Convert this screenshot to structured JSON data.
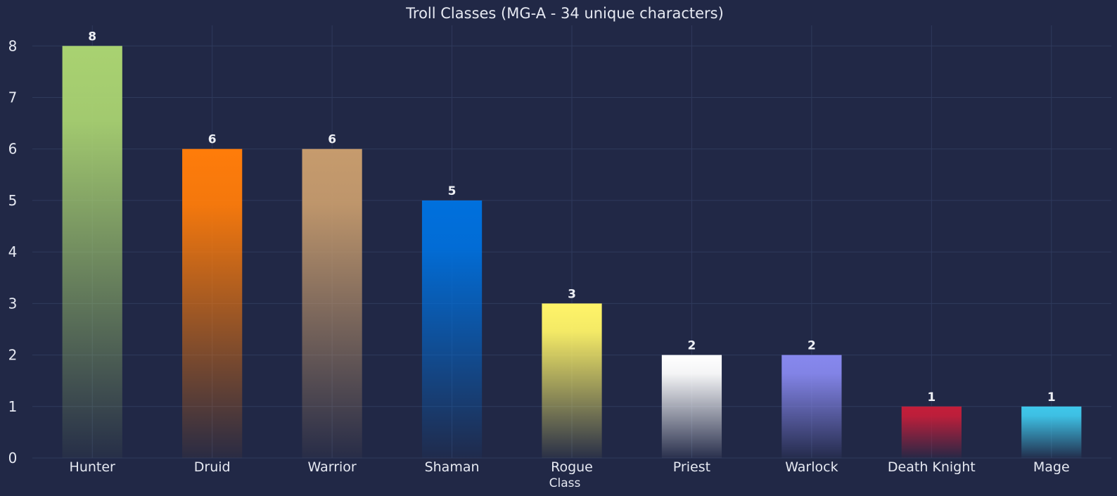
{
  "chart_data": {
    "type": "bar",
    "title": "Troll Classes (MG-A - 34 unique characters)",
    "xlabel": "Class",
    "ylabel": "",
    "categories": [
      "Hunter",
      "Druid",
      "Warrior",
      "Shaman",
      "Rogue",
      "Priest",
      "Warlock",
      "Death Knight",
      "Mage"
    ],
    "values": [
      8,
      6,
      6,
      5,
      3,
      2,
      2,
      1,
      1
    ],
    "colors": [
      "#A9D271",
      "#FF7C0A",
      "#C69B6D",
      "#0070DD",
      "#FFF468",
      "#FFFFFF",
      "#8788EE",
      "#C41E3A",
      "#3FC7EB"
    ],
    "yticks": [
      0,
      1,
      2,
      3,
      4,
      5,
      6,
      7,
      8
    ],
    "ylim": [
      0,
      8.4
    ],
    "grid": true,
    "data_labels": true
  },
  "colors": {
    "background": "#212846",
    "grid": "#2f3a5c",
    "text": "#e6e9f2"
  }
}
